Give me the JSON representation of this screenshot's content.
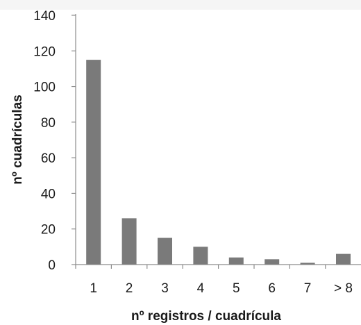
{
  "chart_data": {
    "type": "bar",
    "categories": [
      "1",
      "2",
      "3",
      "4",
      "5",
      "6",
      "7",
      "> 8"
    ],
    "values": [
      115,
      26,
      15,
      10,
      4,
      3,
      1,
      6
    ],
    "title": "",
    "xlabel": "nº registros / cuadrícula",
    "ylabel": "nº cuadrículas",
    "ylim": [
      0,
      140
    ],
    "yticks": [
      "0",
      "20",
      "40",
      "60",
      "80",
      "100",
      "120",
      "140"
    ],
    "grid": false,
    "legend": "none",
    "colors": {
      "bar": "#7a7a7a",
      "axis": "#8c8c8c",
      "text": "#1a1a1a"
    }
  }
}
